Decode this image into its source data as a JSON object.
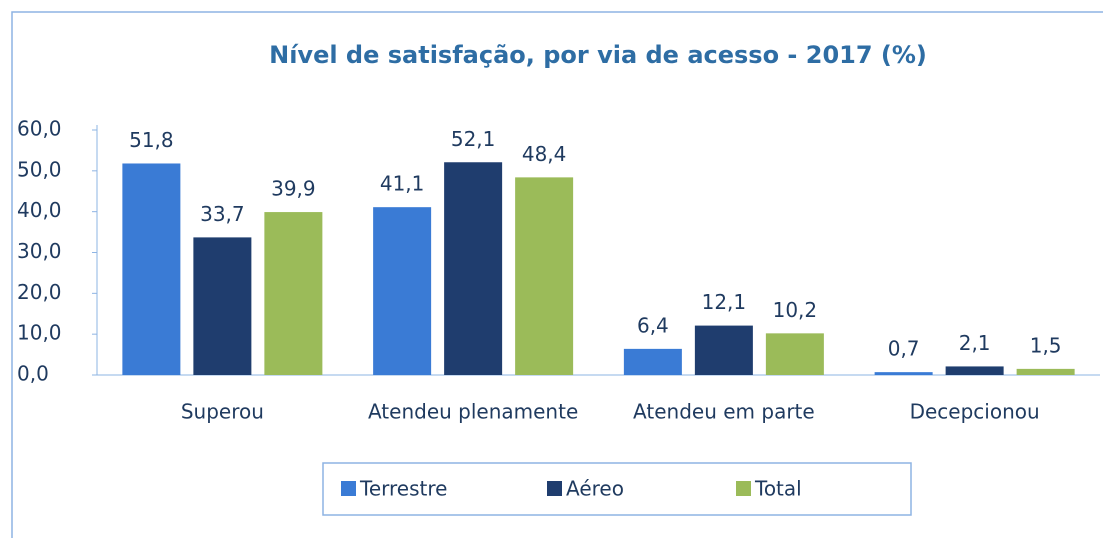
{
  "chart_data": {
    "type": "bar",
    "title": "Nível de satisfação, por via de acesso - 2017 (%)",
    "categories": [
      "Superou",
      "Atendeu plenamente",
      "Atendeu em parte",
      "Decepcionou"
    ],
    "series": [
      {
        "name": "Terrestre",
        "color": "#3a7bd5",
        "values": [
          51.8,
          41.1,
          6.4,
          0.7
        ],
        "value_labels": [
          "51,8",
          "41,1",
          "6,4",
          "0,7"
        ]
      },
      {
        "name": "Aéreo",
        "color": "#1f3d6e",
        "values": [
          33.7,
          52.1,
          12.1,
          2.1
        ],
        "value_labels": [
          "33,7",
          "52,1",
          "12,1",
          "2,1"
        ]
      },
      {
        "name": "Total",
        "color": "#9bbb59",
        "values": [
          39.9,
          48.4,
          10.2,
          1.5
        ],
        "value_labels": [
          "39,9",
          "48,4",
          "10,2",
          "1,5"
        ]
      }
    ],
    "ylim": [
      0,
      60
    ],
    "yticks": [
      {
        "value": 0,
        "label": "0,0"
      },
      {
        "value": 10,
        "label": "10,0"
      },
      {
        "value": 20,
        "label": "20,0"
      },
      {
        "value": 30,
        "label": "30,0"
      },
      {
        "value": 40,
        "label": "40,0"
      },
      {
        "value": 50,
        "label": "50,0"
      },
      {
        "value": 60,
        "label": "60,0"
      }
    ],
    "legend": "bottom"
  }
}
